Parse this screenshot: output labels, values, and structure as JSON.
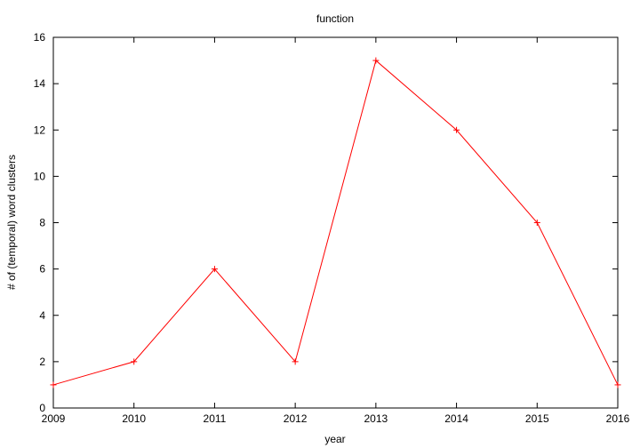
{
  "chart_data": {
    "type": "line",
    "title": "function",
    "xlabel": "year",
    "ylabel": "# of (temporal) word clusters",
    "xlim": [
      2009,
      2016
    ],
    "ylim": [
      0,
      16
    ],
    "x_ticks": [
      "2009",
      "2010",
      "2011",
      "2012",
      "2013",
      "2014",
      "2015",
      "2016"
    ],
    "y_ticks": [
      "0",
      "2",
      "4",
      "6",
      "8",
      "10",
      "12",
      "14",
      "16"
    ],
    "grid": false,
    "series": [
      {
        "x": [
          2009,
          2010,
          2011,
          2012,
          2013,
          2014,
          2015,
          2016
        ],
        "values": [
          1,
          2,
          6,
          2,
          15,
          12,
          8,
          1
        ],
        "color": "#ff0000",
        "marker": "plus"
      }
    ]
  }
}
